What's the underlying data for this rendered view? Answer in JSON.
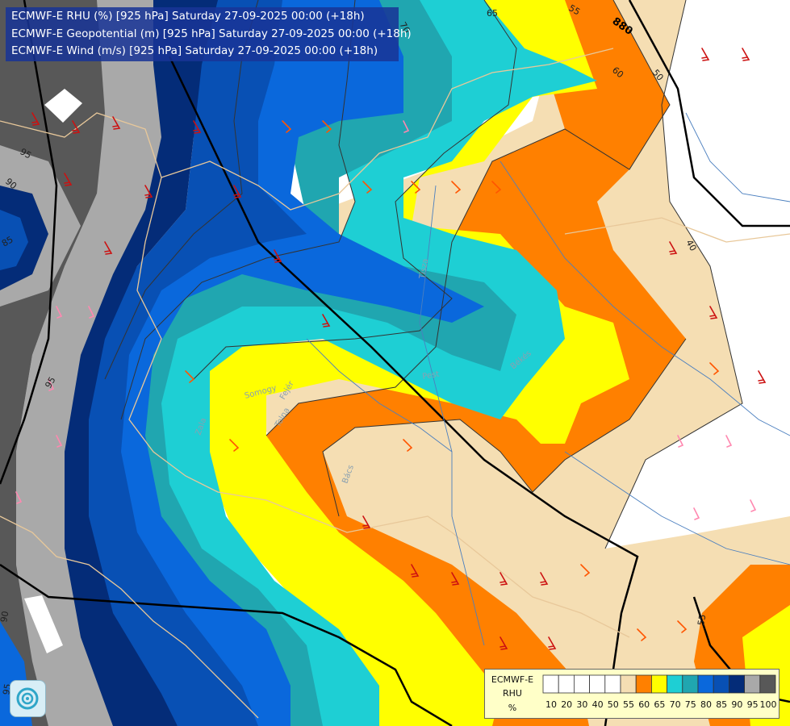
{
  "titles": {
    "line1": "ECMWF-E RHU (%) [925 hPa] Saturday 27-09-2025 00:00 (+18h)",
    "line2": "ECMWF-E Geopotential (m) [925 hPa] Saturday 27-09-2025 00:00 (+18h)",
    "line3": "ECMWF-E Wind (m/s) [925 hPa] Saturday 27-09-2025 00:00 (+18h)"
  },
  "legend": {
    "model": "ECMWF-E",
    "param": "RHU",
    "unit": "%",
    "scale": [
      {
        "label": "10",
        "color": "#ffffff"
      },
      {
        "label": "20",
        "color": "#ffffff"
      },
      {
        "label": "30",
        "color": "#ffffff"
      },
      {
        "label": "40",
        "color": "#ffffff"
      },
      {
        "label": "50",
        "color": "#ffffff"
      },
      {
        "label": "55",
        "color": "#f5deb3"
      },
      {
        "label": "60",
        "color": "#ff8000"
      },
      {
        "label": "65",
        "color": "#ffff00"
      },
      {
        "label": "70",
        "color": "#1ecfd4"
      },
      {
        "label": "75",
        "color": "#20a6b0"
      },
      {
        "label": "80",
        "color": "#0a68dc"
      },
      {
        "label": "85",
        "color": "#0850b4"
      },
      {
        "label": "90",
        "color": "#042c78"
      },
      {
        "label": "95",
        "color": "#a9a9a9"
      },
      {
        "label": "100",
        "color": "#585858"
      }
    ]
  },
  "map": {
    "geopotential_labels": [
      "880"
    ],
    "rhu_contour_labels": [
      "70",
      "65",
      "55",
      "60",
      "50",
      "40",
      "90",
      "95",
      "85",
      "95",
      "90",
      "95",
      "55"
    ],
    "place_labels": [
      "Tisza",
      "Pest",
      "Békés",
      "Somogy",
      "Fejér",
      "Zala",
      "Tolna",
      "Bács"
    ],
    "barb_colors": {
      "strong": "#cc1111",
      "moderate": "#ff5500",
      "light": "#ff88b0"
    }
  }
}
